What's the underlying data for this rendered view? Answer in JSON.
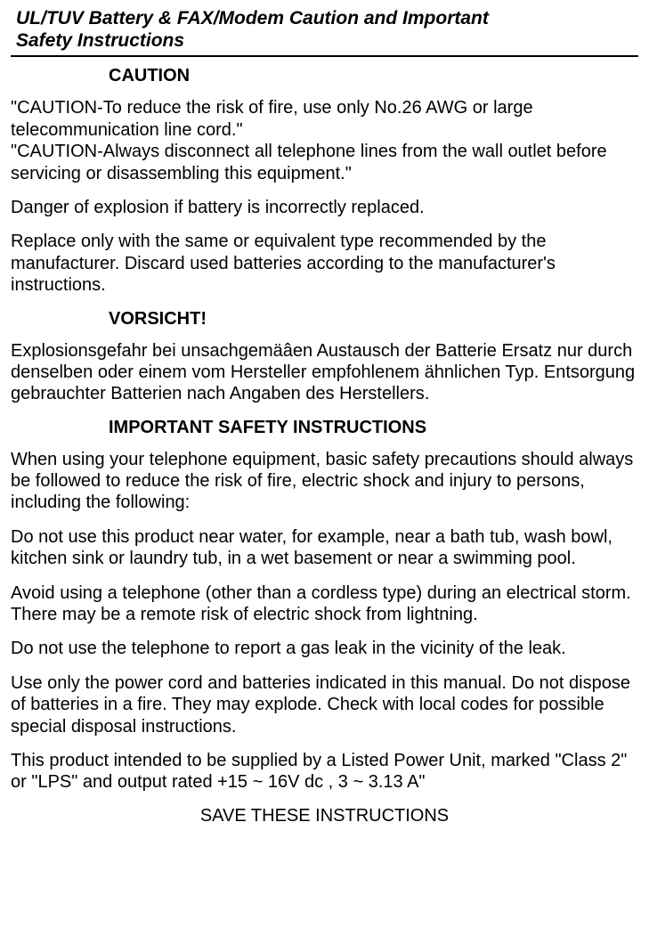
{
  "title_line1": "UL/TUV Battery & FAX/Modem Caution and Important",
  "title_line2": "Safety Instructions",
  "heading_caution": "CAUTION",
  "caution_block": "\"CAUTION-To reduce the risk of fire, use only No.26 AWG or large telecommunication  line cord.\"\n  \"CAUTION-Always disconnect all telephone lines from the wall outlet before servicing or disassembling this equipment.\"",
  "danger": "Danger of explosion if battery is incorrectly replaced.",
  "replace": "Replace only with the same or equivalent type recommended by the manufacturer. Discard used batteries according to the manufacturer's instructions.",
  "heading_vorsicht": "VORSICHT!",
  "vorsicht_text": "Explosionsgefahr bei unsachgemäâen Austausch der Batterie Ersatz nur durch denselben oder einem vom Hersteller empfohlenem ähnlichen Typ. Entsorgung gebrauchter Batterien nach Angaben des Herstellers.",
  "heading_important": "IMPORTANT SAFETY INSTRUCTIONS",
  "imp1": "When using your telephone equipment, basic safety precautions should always be followed to reduce the risk of fire, electric shock and injury to persons, including the following:",
  "imp2": "Do not use this product near water, for example, near a bath tub, wash bowl, kitchen sink or laundry tub, in a wet basement or near a swimming pool.",
  "imp3": "Avoid using a telephone (other than a cordless type) during an electrical storm. There may be a remote risk of electric shock from lightning.",
  "imp4": "Do not use the telephone to report a gas leak in the vicinity of the leak.",
  "imp5": "Use only the power cord and batteries indicated in this manual. Do not dispose of batteries in a fire. They may explode. Check with local codes for possible special disposal instructions.",
  "imp6": "This product intended to be supplied by a Listed Power Unit, marked \"Class 2\" or \"LPS\" and output rated +15 ~ 16V dc , 3 ~ 3.13 A\"",
  "save": "SAVE THESE INSTRUCTIONS"
}
